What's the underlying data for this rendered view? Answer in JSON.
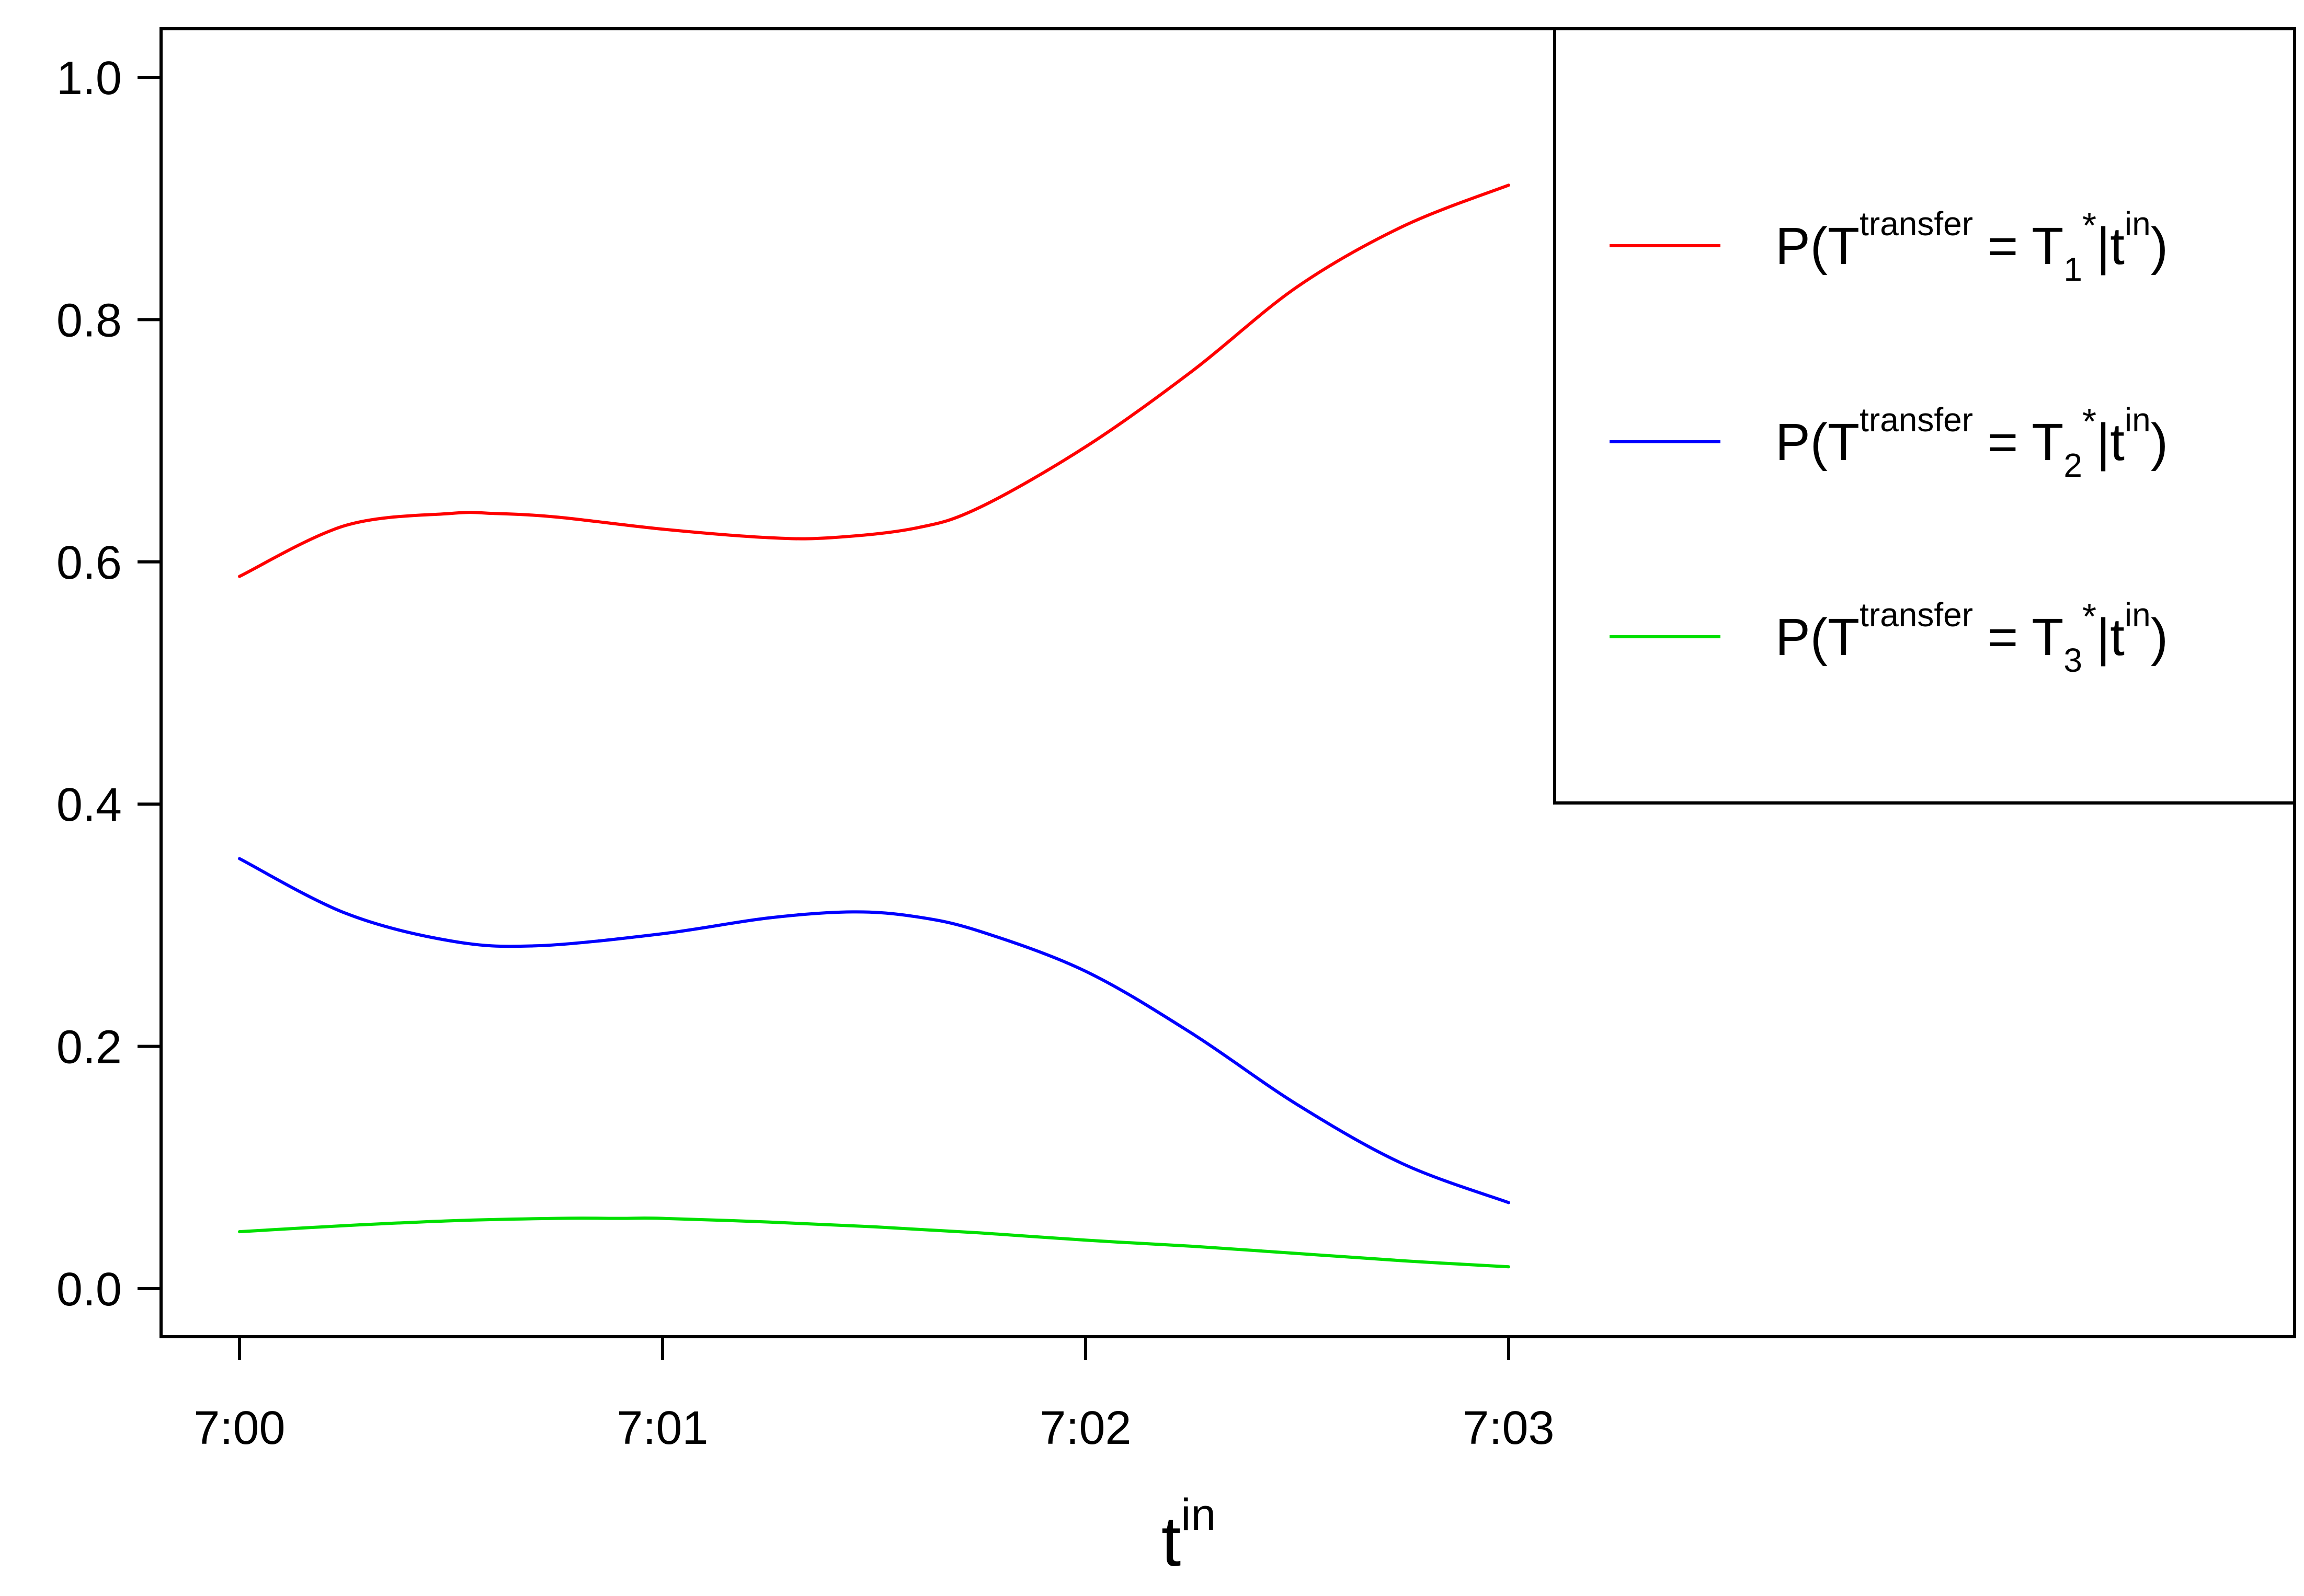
{
  "chart_data": {
    "type": "line",
    "xlabel": {
      "base": "t",
      "sup": "in"
    },
    "ylabel": "",
    "title": "",
    "x_range": [
      0,
      3
    ],
    "ylim": [
      0,
      1
    ],
    "x_tick_values": [
      0,
      1,
      2,
      3
    ],
    "x_tick_labels": [
      "7:00",
      "7:01",
      "7:02",
      "7:03"
    ],
    "y_tick_values": [
      0,
      0.2,
      0.4,
      0.6,
      0.8,
      1.0
    ],
    "y_tick_labels": [
      "0.0",
      "0.2",
      "0.4",
      "0.6",
      "0.8",
      "1.0"
    ],
    "grid": false,
    "legend_position": "top-right",
    "series": [
      {
        "name": "P(T^transfer = T1* | t^in)",
        "label": {
          "p_open": "P(T",
          "sup1": "transfer",
          "eq": " = T",
          "sub": "1",
          "star": "*",
          "bar": "|t",
          "sup2": "in",
          "close": ")"
        },
        "color": "#ff0000",
        "x": [
          0,
          0.25,
          0.5,
          0.6,
          0.75,
          1.0,
          1.25,
          1.4,
          1.6,
          1.75,
          2.0,
          2.25,
          2.5,
          2.75,
          3.0
        ],
        "y": [
          0.588,
          0.63,
          0.64,
          0.64,
          0.637,
          0.627,
          0.62,
          0.62,
          0.628,
          0.645,
          0.695,
          0.757,
          0.827,
          0.877,
          0.911
        ]
      },
      {
        "name": "P(T^transfer = T2* | t^in)",
        "label": {
          "p_open": "P(T",
          "sup1": "transfer",
          "eq": " = T",
          "sub": "2",
          "star": "*",
          "bar": "|t",
          "sup2": "in",
          "close": ")"
        },
        "color": "#0000ff",
        "x": [
          0,
          0.25,
          0.5,
          0.7,
          1.0,
          1.25,
          1.45,
          1.6,
          1.75,
          2.0,
          2.25,
          2.5,
          2.75,
          3.0
        ],
        "y": [
          0.355,
          0.31,
          0.287,
          0.283,
          0.293,
          0.306,
          0.311,
          0.307,
          0.295,
          0.262,
          0.211,
          0.152,
          0.103,
          0.071
        ]
      },
      {
        "name": "P(T^transfer = T3* | t^in)",
        "label": {
          "p_open": "P(T",
          "sup1": "transfer",
          "eq": " = T",
          "sub": "3",
          "star": "*",
          "bar": "|t",
          "sup2": "in",
          "close": ")"
        },
        "color": "#00e000",
        "x": [
          0,
          0.25,
          0.5,
          0.75,
          0.9,
          1.0,
          1.25,
          1.5,
          1.75,
          2.0,
          2.25,
          2.5,
          2.75,
          3.0
        ],
        "y": [
          0.047,
          0.052,
          0.056,
          0.058,
          0.058,
          0.058,
          0.055,
          0.051,
          0.046,
          0.04,
          0.035,
          0.029,
          0.023,
          0.018
        ]
      }
    ]
  }
}
